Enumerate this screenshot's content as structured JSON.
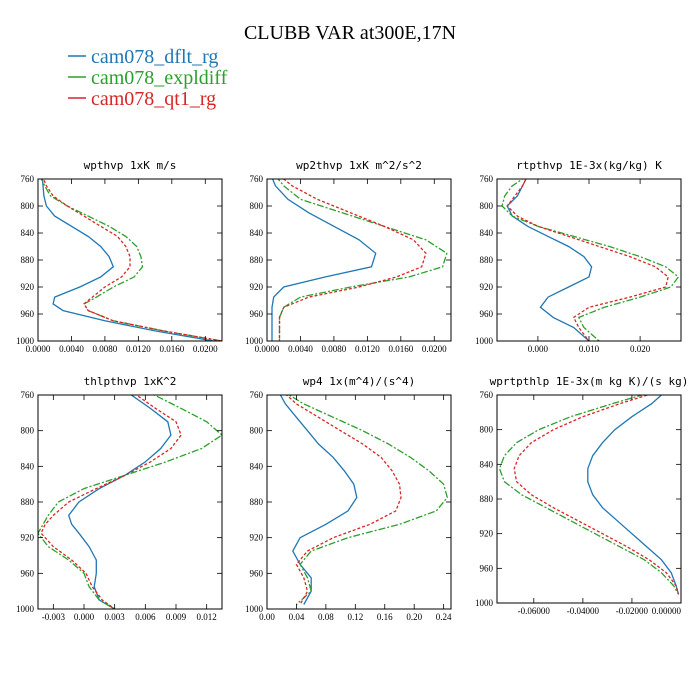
{
  "title": "CLUBB VAR at300E,17N",
  "legend": [
    {
      "label": "cam078_dflt_rg",
      "color": "#1f77b4"
    },
    {
      "label": "cam078_expldiff",
      "color": "#2ca02c"
    },
    {
      "label": "cam078_qt1_rg",
      "color": "#d62728"
    }
  ],
  "chart_data": [
    {
      "type": "line",
      "title": "wpthvp  1xK m/s",
      "xlim": [
        0.0,
        0.022
      ],
      "ylim": [
        760,
        1000
      ],
      "y_inverted": true,
      "xticks": [
        0.0,
        0.004,
        0.008,
        0.012,
        0.016,
        0.02
      ],
      "xtick_labels": [
        "0.0000",
        "0.0040",
        "0.0080",
        "0.0120",
        "0.0160",
        "0.0200"
      ],
      "yticks": [
        760,
        800,
        840,
        880,
        920,
        960,
        1000
      ],
      "y": [
        755,
        770,
        785,
        800,
        815,
        830,
        845,
        860,
        875,
        890,
        905,
        920,
        935,
        945,
        955,
        970,
        985,
        1000
      ],
      "series": [
        {
          "legend_index": 0,
          "values": [
            0.0005,
            0.0006,
            0.0007,
            0.001,
            0.002,
            0.004,
            0.006,
            0.0075,
            0.0085,
            0.009,
            0.0075,
            0.005,
            0.002,
            0.0018,
            0.003,
            0.008,
            0.014,
            0.021
          ]
        },
        {
          "legend_index": 1,
          "values": [
            0.0002,
            0.0008,
            0.0015,
            0.0035,
            0.006,
            0.0085,
            0.0105,
            0.0118,
            0.0123,
            0.0125,
            0.0115,
            0.009,
            0.007,
            0.0055,
            0.006,
            0.009,
            0.015,
            0.022
          ]
        },
        {
          "legend_index": 2,
          "values": [
            0.0005,
            0.001,
            0.0018,
            0.0035,
            0.0055,
            0.0075,
            0.0095,
            0.0105,
            0.011,
            0.011,
            0.01,
            0.008,
            0.0065,
            0.0055,
            0.006,
            0.009,
            0.015,
            0.022
          ]
        }
      ]
    },
    {
      "type": "line",
      "title": "wp2thvp  1xK m^2/s^2",
      "xlim": [
        0.0,
        0.022
      ],
      "ylim": [
        760,
        1000
      ],
      "y_inverted": true,
      "xticks": [
        0.0,
        0.004,
        0.008,
        0.012,
        0.016,
        0.02
      ],
      "xtick_labels": [
        "0.0000",
        "0.0040",
        "0.0080",
        "0.0120",
        "0.0160",
        "0.0200"
      ],
      "yticks": [
        760,
        800,
        840,
        880,
        920,
        960,
        1000
      ],
      "y": [
        755,
        770,
        790,
        810,
        830,
        850,
        870,
        890,
        905,
        920,
        935,
        950,
        965,
        980,
        1000
      ],
      "series": [
        {
          "legend_index": 0,
          "values": [
            0.0005,
            0.001,
            0.0025,
            0.005,
            0.008,
            0.011,
            0.013,
            0.0125,
            0.007,
            0.002,
            0.0008,
            0.0006,
            0.0006,
            0.0006,
            0.0006
          ]
        },
        {
          "legend_index": 1,
          "values": [
            0.001,
            0.002,
            0.004,
            0.009,
            0.014,
            0.019,
            0.0215,
            0.021,
            0.017,
            0.01,
            0.004,
            0.002,
            0.0015,
            0.0015,
            0.0015
          ]
        },
        {
          "legend_index": 2,
          "values": [
            0.0015,
            0.003,
            0.006,
            0.01,
            0.014,
            0.0175,
            0.019,
            0.0185,
            0.0155,
            0.011,
            0.005,
            0.002,
            0.0015,
            0.0015,
            0.0015
          ]
        }
      ]
    },
    {
      "type": "line",
      "title": "rtpthvp  1E-3x(kg/kg) K",
      "xlim": [
        -0.008,
        0.028
      ],
      "ylim": [
        760,
        1000
      ],
      "y_inverted": true,
      "xticks": [
        0.0,
        0.01,
        0.02
      ],
      "xtick_labels": [
        "0.000",
        "0.010",
        "0.020"
      ],
      "yticks": [
        760,
        800,
        840,
        880,
        920,
        960,
        1000
      ],
      "y": [
        755,
        770,
        785,
        800,
        815,
        830,
        845,
        860,
        875,
        890,
        905,
        920,
        935,
        950,
        965,
        980,
        1000
      ],
      "series": [
        {
          "legend_index": 0,
          "values": [
            -0.002,
            -0.003,
            -0.004,
            -0.006,
            -0.005,
            -0.002,
            0.002,
            0.006,
            0.009,
            0.0105,
            0.01,
            0.006,
            0.002,
            0.0005,
            0.003,
            0.007,
            0.01
          ]
        },
        {
          "legend_index": 1,
          "values": [
            -0.002,
            -0.005,
            -0.0065,
            -0.007,
            -0.005,
            0.0,
            0.007,
            0.014,
            0.02,
            0.025,
            0.0275,
            0.026,
            0.02,
            0.013,
            0.008,
            0.009,
            0.012
          ]
        },
        {
          "legend_index": 2,
          "values": [
            -0.002,
            -0.003,
            -0.0045,
            -0.006,
            -0.004,
            0.0,
            0.006,
            0.012,
            0.018,
            0.023,
            0.0255,
            0.025,
            0.018,
            0.01,
            0.007,
            0.008,
            0.01
          ]
        }
      ]
    },
    {
      "type": "line",
      "title": "thlpthvp  1xK^2",
      "xlim": [
        -0.0045,
        0.0135
      ],
      "ylim": [
        760,
        1000
      ],
      "y_inverted": true,
      "xticks": [
        -0.003,
        0.0,
        0.003,
        0.006,
        0.009,
        0.012
      ],
      "xtick_labels": [
        "-0.003",
        "0.000",
        "0.003",
        "0.006",
        "0.009",
        "0.012"
      ],
      "yticks": [
        760,
        800,
        840,
        880,
        920,
        960,
        1000
      ],
      "y": [
        755,
        775,
        790,
        805,
        820,
        835,
        850,
        865,
        880,
        895,
        905,
        915,
        930,
        945,
        960,
        975,
        990,
        1000
      ],
      "series": [
        {
          "legend_index": 0,
          "values": [
            0.004,
            0.0065,
            0.0082,
            0.0085,
            0.0075,
            0.006,
            0.004,
            0.0015,
            -0.0005,
            -0.0015,
            -0.0012,
            -0.0005,
            0.0005,
            0.0012,
            0.0012,
            0.001,
            0.0015,
            0.003
          ]
        },
        {
          "legend_index": 1,
          "values": [
            0.006,
            0.0095,
            0.012,
            0.0135,
            0.0115,
            0.008,
            0.004,
            0.0,
            -0.0025,
            -0.0035,
            -0.004,
            -0.0045,
            -0.0035,
            -0.0015,
            0.0,
            0.0005,
            0.0015,
            0.003
          ]
        },
        {
          "legend_index": 2,
          "values": [
            0.0045,
            0.007,
            0.009,
            0.0095,
            0.0085,
            0.0065,
            0.004,
            0.0012,
            -0.0015,
            -0.003,
            -0.0038,
            -0.0042,
            -0.003,
            -0.0012,
            0.0002,
            0.0008,
            0.0018,
            0.003
          ]
        }
      ]
    },
    {
      "type": "line",
      "title": "wp4  1x(m^4)/(s^4)",
      "xlim": [
        0.0,
        0.25
      ],
      "ylim": [
        760,
        1000
      ],
      "y_inverted": true,
      "xticks": [
        0.0,
        0.04,
        0.08,
        0.12,
        0.16,
        0.2,
        0.24
      ],
      "xtick_labels": [
        "0.00",
        "0.04",
        "0.08",
        "0.12",
        "0.16",
        "0.20",
        "0.24"
      ],
      "yticks": [
        760,
        800,
        840,
        880,
        920,
        960,
        1000
      ],
      "y": [
        755,
        770,
        785,
        800,
        815,
        830,
        845,
        860,
        875,
        890,
        905,
        920,
        935,
        950,
        965,
        980,
        995
      ],
      "series": [
        {
          "legend_index": 0,
          "values": [
            0.015,
            0.025,
            0.04,
            0.055,
            0.07,
            0.09,
            0.105,
            0.118,
            0.122,
            0.11,
            0.08,
            0.045,
            0.035,
            0.045,
            0.06,
            0.06,
            0.05
          ]
        },
        {
          "legend_index": 1,
          "values": [
            0.02,
            0.05,
            0.09,
            0.13,
            0.165,
            0.195,
            0.22,
            0.24,
            0.245,
            0.23,
            0.18,
            0.11,
            0.06,
            0.045,
            0.055,
            0.06,
            0.04
          ]
        },
        {
          "legend_index": 2,
          "values": [
            0.02,
            0.04,
            0.07,
            0.1,
            0.13,
            0.155,
            0.17,
            0.18,
            0.182,
            0.175,
            0.14,
            0.09,
            0.055,
            0.04,
            0.05,
            0.055,
            0.045
          ]
        }
      ]
    },
    {
      "type": "line",
      "title": "wprtpthlp  1E-3x(m kg K)/(s kg)",
      "xlim": [
        -0.075,
        0.0
      ],
      "ylim": [
        760,
        1000
      ],
      "y_inverted": true,
      "xticks": [
        -0.06,
        -0.04,
        -0.02,
        0.0
      ],
      "xtick_labels": [
        "-0.06000",
        "-0.04000",
        "-0.02000",
        "0.00000"
      ],
      "yticks": [
        760,
        800,
        840,
        880,
        920,
        960,
        1000
      ],
      "y": [
        755,
        770,
        785,
        800,
        815,
        830,
        845,
        860,
        875,
        890,
        905,
        920,
        935,
        950,
        965,
        980,
        990
      ],
      "series": [
        {
          "legend_index": 0,
          "values": [
            -0.006,
            -0.012,
            -0.02,
            -0.027,
            -0.032,
            -0.036,
            -0.038,
            -0.038,
            -0.036,
            -0.032,
            -0.026,
            -0.02,
            -0.014,
            -0.008,
            -0.004,
            -0.002,
            -0.001
          ]
        },
        {
          "legend_index": 1,
          "values": [
            -0.01,
            -0.028,
            -0.045,
            -0.058,
            -0.067,
            -0.072,
            -0.074,
            -0.072,
            -0.065,
            -0.055,
            -0.045,
            -0.035,
            -0.025,
            -0.015,
            -0.008,
            -0.003,
            -0.001
          ]
        },
        {
          "legend_index": 2,
          "values": [
            -0.008,
            -0.025,
            -0.04,
            -0.052,
            -0.061,
            -0.066,
            -0.068,
            -0.067,
            -0.061,
            -0.052,
            -0.042,
            -0.032,
            -0.022,
            -0.013,
            -0.006,
            -0.002,
            -0.001
          ]
        }
      ]
    }
  ]
}
